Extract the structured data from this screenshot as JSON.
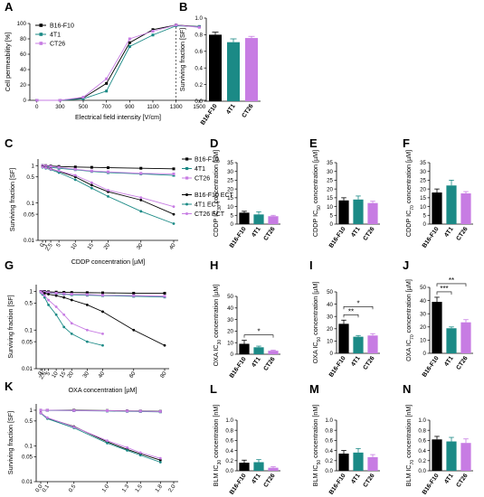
{
  "colors": {
    "B16-F10": "#000000",
    "4T1": "#1b8a86",
    "CT26": "#c77ce3"
  },
  "chart_data": [
    {
      "id": "A",
      "panel_label": "A",
      "type": "line",
      "xlabel": "Electrical field intensity [V/cm]",
      "ylabel": "Cell permeability [%]",
      "x": [
        0,
        300,
        500,
        700,
        900,
        1100,
        1300,
        1500
      ],
      "x_ticks": [
        "0",
        "300",
        "500",
        "700",
        "900",
        "1100",
        "1300",
        "1500"
      ],
      "ylim": [
        0,
        100
      ],
      "y_ticks": [
        "0",
        "20",
        "40",
        "60",
        "80",
        "100"
      ],
      "legend": "top-left",
      "vline": 1300,
      "series": [
        {
          "name": "B16-F10",
          "values": [
            0,
            0,
            3,
            22,
            75,
            92,
            98,
            96
          ]
        },
        {
          "name": "4T1",
          "values": [
            0,
            0,
            2,
            12,
            70,
            85,
            97,
            96
          ]
        },
        {
          "name": "CT26",
          "values": [
            0,
            0,
            4,
            28,
            80,
            90,
            98,
            95
          ]
        }
      ]
    },
    {
      "id": "B",
      "panel_label": "B",
      "type": "bar",
      "ylabel": "Surviving fraction [SF]",
      "categories": [
        "B16-F10",
        "4T1",
        "CT26"
      ],
      "values": [
        0.8,
        0.71,
        0.76
      ],
      "errors": [
        0.03,
        0.04,
        0.02
      ],
      "ylim": [
        0,
        1.0
      ],
      "y_ticks": [
        "0.0",
        "0.2",
        "0.4",
        "0.6",
        "0.8",
        "1.0"
      ]
    },
    {
      "id": "C",
      "panel_label": "C",
      "type": "line",
      "xlabel": "CDDP concentration [µM]",
      "ylabel": "Surviving fraction [SF]",
      "yscale": "log",
      "ylim": [
        0.01,
        1.5
      ],
      "y_tick_values": [
        0.01,
        0.05,
        0.1,
        0.5,
        1
      ],
      "y_ticks": [
        "0.01",
        "0.05",
        "0.1",
        "0.5",
        "1"
      ],
      "x": [
        0,
        1,
        2.5,
        5,
        10,
        15,
        20,
        30,
        40
      ],
      "x_ticks": [
        "0",
        "1",
        "2.5",
        "5",
        "10",
        "15",
        "20",
        "30",
        "40"
      ],
      "legend": "right",
      "series": [
        {
          "name": "B16-F10",
          "values": [
            1.0,
            1.0,
            0.98,
            0.95,
            0.92,
            0.9,
            0.88,
            0.85,
            0.82
          ]
        },
        {
          "name": "4T1",
          "values": [
            1.0,
            0.95,
            0.9,
            0.85,
            0.78,
            0.7,
            0.65,
            0.6,
            0.55
          ]
        },
        {
          "name": "CT26",
          "values": [
            1.0,
            0.98,
            0.95,
            0.9,
            0.8,
            0.72,
            0.68,
            0.62,
            0.6
          ]
        },
        {
          "name": "B16-F10 ECT",
          "values": [
            0.95,
            0.9,
            0.82,
            0.7,
            0.5,
            0.3,
            0.2,
            0.12,
            0.05
          ]
        },
        {
          "name": "4T1 ECT",
          "values": [
            0.9,
            0.85,
            0.78,
            0.65,
            0.42,
            0.25,
            0.15,
            0.06,
            0.028
          ]
        },
        {
          "name": "CT26 ECT",
          "values": [
            0.92,
            0.88,
            0.8,
            0.72,
            0.55,
            0.35,
            0.22,
            0.14,
            0.08
          ]
        }
      ]
    },
    {
      "id": "D",
      "panel_label": "D",
      "type": "bar",
      "ylabel": "CDDP IC30 concentration [µM]",
      "ylabel_base": "CDDP IC",
      "ylabel_sub": "30",
      "ylabel_tail": " concentration [µM]",
      "categories": [
        "B16-F10",
        "4T1",
        "CT26"
      ],
      "values": [
        6.5,
        5.5,
        4.5
      ],
      "errors": [
        0.8,
        1.5,
        0.5
      ],
      "ylim": [
        0,
        35
      ],
      "y_ticks": [
        "0",
        "5",
        "10",
        "15",
        "20",
        "25",
        "30",
        "35"
      ]
    },
    {
      "id": "E",
      "panel_label": "E",
      "type": "bar",
      "ylabel": "CDDP IC50 concentration [µM]",
      "ylabel_base": "CDDP IC",
      "ylabel_sub": "50",
      "ylabel_tail": " concentration [µM]",
      "categories": [
        "B16-F10",
        "4T1",
        "CT26"
      ],
      "values": [
        13.5,
        14.0,
        12.0
      ],
      "errors": [
        1.5,
        2.0,
        1.0
      ],
      "ylim": [
        0,
        35
      ],
      "y_ticks": [
        "0",
        "5",
        "10",
        "15",
        "20",
        "25",
        "30",
        "35"
      ]
    },
    {
      "id": "F",
      "panel_label": "F",
      "type": "bar",
      "ylabel": "CDDP IC70 concentration [µM]",
      "ylabel_base": "CDDP IC",
      "ylabel_sub": "70",
      "ylabel_tail": " concentration [µM]",
      "categories": [
        "B16-F10",
        "4T1",
        "CT26"
      ],
      "values": [
        18.0,
        22.0,
        17.5
      ],
      "errors": [
        2.0,
        3.0,
        1.0
      ],
      "ylim": [
        0,
        35
      ],
      "y_ticks": [
        "0",
        "5",
        "10",
        "15",
        "20",
        "25",
        "30",
        "35"
      ]
    },
    {
      "id": "G",
      "panel_label": "G",
      "type": "line",
      "xlabel": "OXA concentration [µM]",
      "ylabel": "Surviving fraction [SF]",
      "yscale": "log",
      "ylim": [
        0.01,
        1.5
      ],
      "y_tick_values": [
        0.01,
        0.05,
        0.1,
        0.5,
        1
      ],
      "y_ticks": [
        "0.01",
        "0.05",
        "0.1",
        "0.5",
        "1"
      ],
      "x": [
        0,
        1,
        2.5,
        5,
        10,
        15,
        20,
        30,
        40,
        60,
        80
      ],
      "x_ticks": [
        "0",
        "1",
        "2.5",
        "5",
        "10",
        "15",
        "20",
        "30",
        "40",
        "60",
        "80"
      ],
      "series": [
        {
          "name": "B16-F10",
          "values": [
            1.0,
            1.0,
            1.0,
            0.98,
            0.96,
            0.95,
            0.94,
            0.93,
            0.92,
            0.9,
            0.9
          ]
        },
        {
          "name": "4T1",
          "values": [
            1.0,
            0.98,
            0.95,
            0.92,
            0.88,
            0.85,
            0.82,
            0.8,
            0.78,
            0.75,
            0.72
          ]
        },
        {
          "name": "CT26",
          "values": [
            1.0,
            0.98,
            0.96,
            0.93,
            0.9,
            0.87,
            0.85,
            0.83,
            0.8,
            0.78,
            0.75
          ]
        },
        {
          "name": "B16-F10 ECT",
          "values": [
            1.0,
            0.95,
            0.9,
            0.85,
            0.78,
            0.7,
            0.6,
            0.45,
            0.3,
            0.1,
            0.04
          ]
        },
        {
          "name": "4T1 ECT",
          "values": [
            0.95,
            0.85,
            0.7,
            0.45,
            0.25,
            0.12,
            0.08,
            0.05,
            0.04,
            null,
            null
          ]
        },
        {
          "name": "CT26 ECT",
          "values": [
            0.98,
            0.9,
            0.78,
            0.6,
            0.4,
            0.25,
            0.15,
            0.1,
            0.08,
            null,
            null
          ]
        }
      ]
    },
    {
      "id": "H",
      "panel_label": "H",
      "type": "bar",
      "ylabel": "OXA IC30 concentration [µM]",
      "ylabel_base": "OXA IC",
      "ylabel_sub": "30",
      "ylabel_tail": " concentration [µM]",
      "categories": [
        "B16-F10",
        "4T1",
        "CT26"
      ],
      "values": [
        9.0,
        6.0,
        3.0
      ],
      "errors": [
        3.0,
        1.0,
        0.5
      ],
      "ylim": [
        0,
        50
      ],
      "y_ticks": [
        "0",
        "10",
        "20",
        "30",
        "40",
        "50"
      ],
      "significance": [
        {
          "from": 0,
          "to": 2,
          "label": "*"
        }
      ]
    },
    {
      "id": "I",
      "panel_label": "I",
      "type": "bar",
      "ylabel": "OXA IC50 concentration [µM]",
      "ylabel_base": "OXA IC",
      "ylabel_sub": "50",
      "ylabel_tail": " concentration [µM]",
      "categories": [
        "B16-F10",
        "4T1",
        "CT26"
      ],
      "values": [
        24.0,
        13.5,
        14.5
      ],
      "errors": [
        3.0,
        1.0,
        1.5
      ],
      "ylim": [
        0,
        50
      ],
      "y_ticks": [
        "0",
        "10",
        "20",
        "30",
        "40",
        "50"
      ],
      "significance": [
        {
          "from": 0,
          "to": 1,
          "label": "**"
        },
        {
          "from": 0,
          "to": 2,
          "label": "*"
        }
      ]
    },
    {
      "id": "J",
      "panel_label": "J",
      "type": "bar",
      "ylabel": "OXA IC70 concentration [µM]",
      "ylabel_base": "OXA IC",
      "ylabel_sub": "70",
      "ylabel_tail": " concentration [µM]",
      "categories": [
        "B16-F10",
        "4T1",
        "CT26"
      ],
      "values": [
        39.0,
        19.0,
        23.5
      ],
      "errors": [
        3.5,
        1.0,
        2.0
      ],
      "ylim": [
        0,
        50
      ],
      "y_ticks": [
        "0",
        "10",
        "20",
        "30",
        "40",
        "50"
      ],
      "significance": [
        {
          "from": 0,
          "to": 1,
          "label": "***"
        },
        {
          "from": 0,
          "to": 2,
          "label": "**"
        }
      ]
    },
    {
      "id": "K",
      "panel_label": "K",
      "type": "line",
      "xlabel": "BLM concentration [nM]",
      "ylabel": "Surviving fraction [SF]",
      "yscale": "log",
      "ylim": [
        0.01,
        1.5
      ],
      "y_tick_values": [
        0.01,
        0.05,
        0.1,
        0.5,
        1
      ],
      "y_ticks": [
        "0.01",
        "0.05",
        "0.1",
        "0.5",
        "1"
      ],
      "x": [
        0,
        0.1,
        0.5,
        1.0,
        1.3,
        1.5,
        1.8
      ],
      "x_ticks": [
        "0.0",
        "0.1",
        "0.5",
        "1.0",
        "1.3",
        "1.5",
        "1.8",
        "2.0"
      ],
      "x_tick_values": [
        0,
        0.1,
        0.5,
        1.0,
        1.3,
        1.5,
        1.8,
        2.0
      ],
      "xlim": [
        0,
        2.0
      ],
      "series": [
        {
          "name": "B16-F10",
          "values": [
            1.0,
            1.0,
            1.0,
            0.98,
            0.96,
            0.95,
            0.93
          ]
        },
        {
          "name": "4T1",
          "values": [
            1.0,
            0.99,
            0.97,
            0.95,
            0.93,
            0.92,
            0.9
          ]
        },
        {
          "name": "CT26",
          "values": [
            1.0,
            1.0,
            0.98,
            0.97,
            0.95,
            0.94,
            0.92
          ]
        },
        {
          "name": "B16-F10 ECT",
          "values": [
            0.85,
            0.6,
            0.35,
            0.13,
            0.08,
            0.06,
            0.04
          ]
        },
        {
          "name": "4T1 ECT",
          "values": [
            0.82,
            0.58,
            0.32,
            0.12,
            0.075,
            0.055,
            0.035
          ]
        },
        {
          "name": "CT26 ECT",
          "values": [
            0.84,
            0.62,
            0.34,
            0.14,
            0.09,
            0.065,
            0.045
          ]
        }
      ]
    },
    {
      "id": "L",
      "panel_label": "L",
      "type": "bar",
      "ylabel": "BLM IC30 concentration [nM]",
      "ylabel_base": "BLM IC",
      "ylabel_sub": "30",
      "ylabel_tail": " concentration [nM]",
      "categories": [
        "B16-F10",
        "4T1",
        "CT26"
      ],
      "values": [
        0.16,
        0.17,
        0.06
      ],
      "errors": [
        0.05,
        0.05,
        0.02
      ],
      "ylim": [
        0,
        1.0
      ],
      "y_ticks": [
        "0.0",
        "0.2",
        "0.4",
        "0.6",
        "0.8",
        "1.0"
      ]
    },
    {
      "id": "M",
      "panel_label": "M",
      "type": "bar",
      "ylabel": "BLM IC50 concentration [nM]",
      "ylabel_base": "BLM IC",
      "ylabel_sub": "50",
      "ylabel_tail": " concentration [nM]",
      "categories": [
        "B16-F10",
        "4T1",
        "CT26"
      ],
      "values": [
        0.34,
        0.36,
        0.27
      ],
      "errors": [
        0.06,
        0.08,
        0.05
      ],
      "ylim": [
        0,
        1.0
      ],
      "y_ticks": [
        "0.0",
        "0.2",
        "0.4",
        "0.6",
        "0.8",
        "1.0"
      ]
    },
    {
      "id": "N",
      "panel_label": "N",
      "type": "bar",
      "ylabel": "BLM IC70 concentration [nM]",
      "ylabel_base": "BLM IC",
      "ylabel_sub": "70",
      "ylabel_tail": " concentration [nM]",
      "categories": [
        "B16-F10",
        "4T1",
        "CT26"
      ],
      "values": [
        0.62,
        0.58,
        0.55
      ],
      "errors": [
        0.06,
        0.08,
        0.08
      ],
      "ylim": [
        0,
        1.0
      ],
      "y_ticks": [
        "0.0",
        "0.2",
        "0.4",
        "0.6",
        "0.8",
        "1.0"
      ]
    }
  ]
}
